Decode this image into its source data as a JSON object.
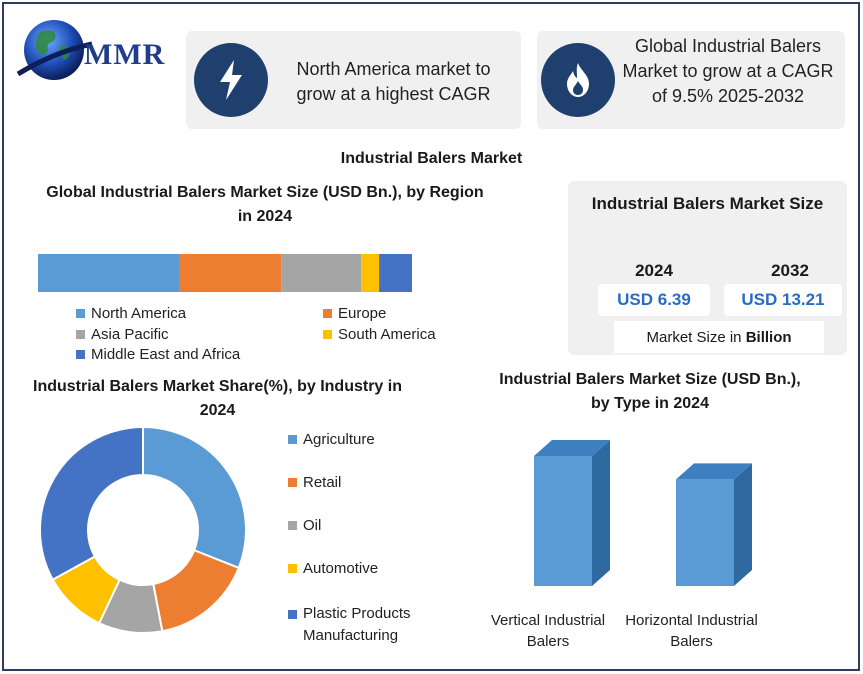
{
  "logo": {
    "text": "MMR"
  },
  "cards": [
    {
      "text": "North America market to grow at a highest CAGR",
      "icon": "lightning-icon"
    },
    {
      "text": "Global Industrial Balers Market to grow at a CAGR of 9.5% 2025-2032",
      "icon": "flame-icon"
    }
  ],
  "main_title": "Industrial Balers Market",
  "market_size": {
    "title": "Industrial Balers Market Size",
    "year_1": "2024",
    "year_2": "2032",
    "value_1": "USD 6.39",
    "value_2": "USD 13.21",
    "caption_prefix": "Market Size in ",
    "caption_bold": "Billion"
  },
  "colors": {
    "blue": "#5b9bd5",
    "orange": "#ed7d31",
    "gray": "#a5a5a5",
    "yellow": "#ffc000",
    "dark_blue": "#4472c4",
    "icon_bg": "#1f3f6e",
    "bar_front": "#5b9bd5",
    "bar_side": "#2e6aa0"
  },
  "chart_data": [
    {
      "type": "bar",
      "orientation": "horizontal-stacked",
      "title": "Global Industrial Balers Market Size (USD Bn.), by Region in 2024",
      "categories": [
        "North America",
        "Europe",
        "Asia Pacific",
        "South America",
        "Middle East and Africa"
      ],
      "values": [
        37.7,
        27.3,
        21.4,
        4.8,
        8.8
      ],
      "legend": "bottom"
    },
    {
      "type": "pie",
      "style": "donut",
      "title": "Industrial Balers Market Share(%), by Industry in 2024",
      "categories": [
        "Agriculture",
        "Retail",
        "Oil",
        "Automotive",
        "Plastic Products Manufacturing"
      ],
      "values": [
        31,
        16,
        10,
        10,
        33
      ],
      "legend": "right"
    },
    {
      "type": "bar",
      "style": "3d-column",
      "title": "Industrial Balers Market Size (USD Bn.), by Type in 2024",
      "categories": [
        "Vertical Industrial Balers",
        "Horizontal Industrial Balers"
      ],
      "values": [
        1.0,
        0.82
      ],
      "axis_hidden": true
    }
  ]
}
